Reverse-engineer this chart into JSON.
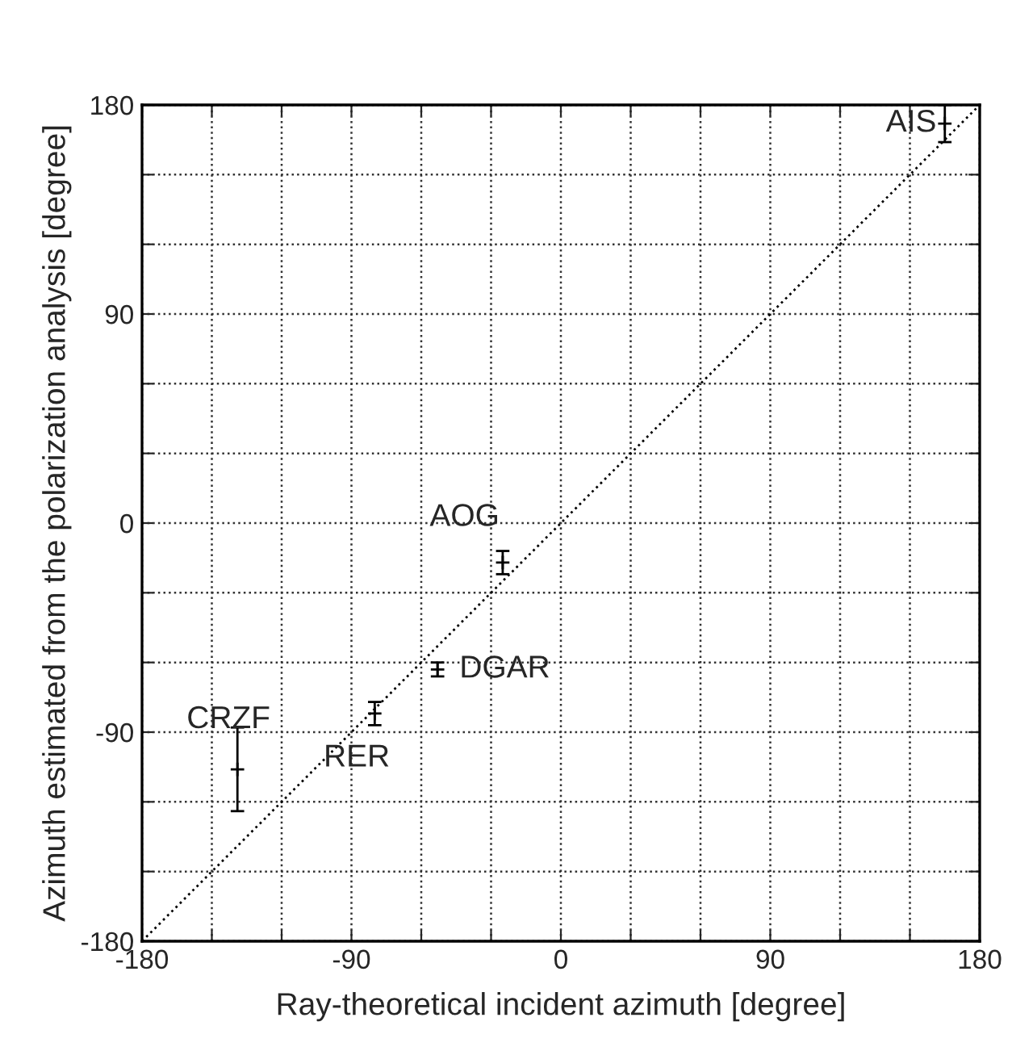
{
  "chart_data": {
    "type": "scatter",
    "xlabel": "Ray-theoretical incident azimuth [degree]",
    "ylabel": "Azimuth estimated from the polarization analysis [degree]",
    "xlim": [
      -180,
      180
    ],
    "ylim": [
      -180,
      180
    ],
    "xticks": [
      -180,
      {
        "value": -150,
        "label": null
      },
      {
        "value": -120,
        "label": null
      },
      -90,
      {
        "value": -60,
        "label": null
      },
      {
        "value": -30,
        "label": null
      },
      0,
      {
        "value": 30,
        "label": null
      },
      {
        "value": 60,
        "label": null
      },
      90,
      {
        "value": 120,
        "label": null
      },
      {
        "value": 150,
        "label": null
      },
      180
    ],
    "yticks": [
      -180,
      {
        "value": -150,
        "label": null
      },
      {
        "value": -120,
        "label": null
      },
      -90,
      {
        "value": -60,
        "label": null
      },
      {
        "value": -30,
        "label": null
      },
      0,
      {
        "value": 30,
        "label": null
      },
      {
        "value": 60,
        "label": null
      },
      90,
      {
        "value": 120,
        "label": null
      },
      {
        "value": 150,
        "label": null
      },
      180
    ],
    "grid": true,
    "legend": false,
    "series": [
      {
        "color": "#000000",
        "marker": "cross",
        "x": [
          -139,
          -80,
          -53,
          -25,
          165
        ],
        "values": [
          -106,
          -82,
          -63,
          -17,
          172
        ],
        "errors": [
          18,
          5,
          3,
          5,
          8
        ]
      },
      {
        "type": "line",
        "color": "#000000",
        "line_style": "dotted",
        "marker": "none",
        "x": [
          -180,
          180
        ],
        "values": [
          -180,
          180
        ]
      }
    ],
    "annotations": [
      {
        "text": "CRZF",
        "x": -139,
        "y": -106
      },
      {
        "text": "RER",
        "x": -80,
        "y": -82
      },
      {
        "text": "DGAR",
        "x": -53,
        "y": -63
      },
      {
        "text": "AOG",
        "x": -25,
        "y": -17
      },
      {
        "text": "AIS",
        "x": 165,
        "y": 172
      }
    ]
  }
}
